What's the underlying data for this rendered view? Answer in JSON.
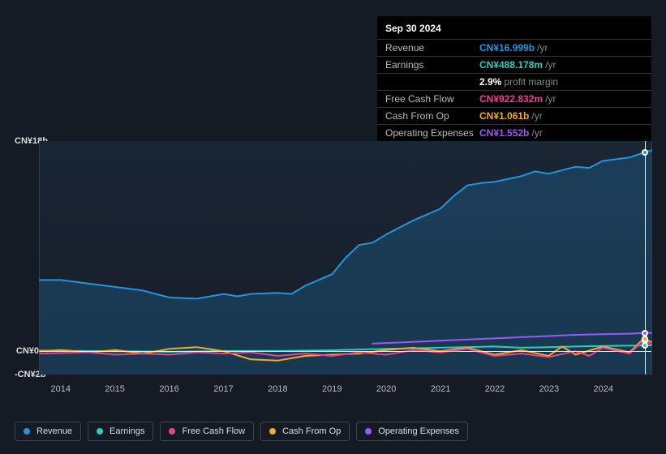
{
  "tooltip": {
    "date": "Sep 30 2024",
    "rows": [
      {
        "key": "revenue",
        "label": "Revenue",
        "value": "CN¥16.999b",
        "suffix": "/yr",
        "color": "#2394df"
      },
      {
        "key": "earnings",
        "label": "Earnings",
        "value": "CN¥488.178m",
        "suffix": "/yr",
        "color": "#34c9bc",
        "extra": "2.9%",
        "extra_suffix": "profit margin"
      },
      {
        "key": "fcf",
        "label": "Free Cash Flow",
        "value": "CN¥922.832m",
        "suffix": "/yr",
        "color": "#e84393"
      },
      {
        "key": "cfo",
        "label": "Cash From Op",
        "value": "CN¥1.061b",
        "suffix": "/yr",
        "color": "#f0aa2c"
      },
      {
        "key": "opex",
        "label": "Operating Expenses",
        "value": "CN¥1.552b",
        "suffix": "/yr",
        "color": "#9b59f5"
      }
    ]
  },
  "chart": {
    "type": "line",
    "background_top": "#1b2635",
    "background_bottom": "#161d28",
    "grid_color": "#333d4a",
    "zero_line_color": "#e8ecf5",
    "cursor_color": "#e8ecf5",
    "x_start": 2013.6,
    "x_end": 2024.9,
    "y_min": -2,
    "y_max": 18,
    "y_ticks": [
      {
        "v": 18,
        "label": "CN¥18b"
      },
      {
        "v": 0,
        "label": "CN¥0"
      },
      {
        "v": -2,
        "label": "-CN¥2b"
      }
    ],
    "x_ticks": [
      2014,
      2015,
      2016,
      2017,
      2018,
      2019,
      2020,
      2021,
      2022,
      2023,
      2024
    ],
    "cursor_x": 2024.75,
    "label_fontsize": 11,
    "stroke_width": 2,
    "series": {
      "revenue": {
        "name": "Revenue",
        "color": "#2394df",
        "fill": "rgba(35,148,223,0.22)",
        "points": [
          [
            2013.6,
            6.1
          ],
          [
            2014.0,
            6.1
          ],
          [
            2014.5,
            5.8
          ],
          [
            2015.0,
            5.5
          ],
          [
            2015.5,
            5.2
          ],
          [
            2016.0,
            4.6
          ],
          [
            2016.5,
            4.5
          ],
          [
            2017.0,
            4.9
          ],
          [
            2017.25,
            4.7
          ],
          [
            2017.5,
            4.9
          ],
          [
            2018.0,
            5.0
          ],
          [
            2018.25,
            4.9
          ],
          [
            2018.5,
            5.6
          ],
          [
            2018.75,
            6.1
          ],
          [
            2019.0,
            6.6
          ],
          [
            2019.25,
            8.0
          ],
          [
            2019.5,
            9.1
          ],
          [
            2019.75,
            9.3
          ],
          [
            2020.0,
            10.0
          ],
          [
            2020.5,
            11.2
          ],
          [
            2021.0,
            12.2
          ],
          [
            2021.25,
            13.3
          ],
          [
            2021.5,
            14.2
          ],
          [
            2021.75,
            14.4
          ],
          [
            2022.0,
            14.5
          ],
          [
            2022.5,
            15.0
          ],
          [
            2022.75,
            15.4
          ],
          [
            2023.0,
            15.2
          ],
          [
            2023.5,
            15.8
          ],
          [
            2023.75,
            15.7
          ],
          [
            2024.0,
            16.3
          ],
          [
            2024.5,
            16.6
          ],
          [
            2024.75,
            17.0
          ],
          [
            2024.9,
            17.2
          ]
        ]
      },
      "earnings": {
        "name": "Earnings",
        "color": "#34c9bc",
        "points": [
          [
            2013.6,
            0.05
          ],
          [
            2015.0,
            0.0
          ],
          [
            2016.0,
            -0.05
          ],
          [
            2017.0,
            0.02
          ],
          [
            2018.0,
            0.02
          ],
          [
            2019.0,
            0.08
          ],
          [
            2020.0,
            0.2
          ],
          [
            2021.0,
            0.3
          ],
          [
            2022.0,
            0.4
          ],
          [
            2022.5,
            0.3
          ],
          [
            2023.0,
            0.35
          ],
          [
            2023.5,
            0.4
          ],
          [
            2024.0,
            0.45
          ],
          [
            2024.75,
            0.49
          ],
          [
            2024.9,
            0.5
          ]
        ]
      },
      "fcf": {
        "name": "Free Cash Flow",
        "color": "#e84393",
        "points": [
          [
            2013.6,
            -0.2
          ],
          [
            2014.5,
            -0.1
          ],
          [
            2015.0,
            -0.3
          ],
          [
            2015.5,
            -0.2
          ],
          [
            2016.0,
            -0.3
          ],
          [
            2016.5,
            -0.1
          ],
          [
            2017.0,
            -0.2
          ],
          [
            2017.5,
            -0.1
          ],
          [
            2018.0,
            -0.4
          ],
          [
            2018.5,
            -0.2
          ],
          [
            2019.0,
            -0.4
          ],
          [
            2019.5,
            -0.1
          ],
          [
            2020.0,
            -0.3
          ],
          [
            2020.5,
            0.1
          ],
          [
            2021.0,
            -0.1
          ],
          [
            2021.5,
            0.2
          ],
          [
            2022.0,
            -0.4
          ],
          [
            2022.5,
            -0.2
          ],
          [
            2023.0,
            -0.5
          ],
          [
            2023.5,
            0.0
          ],
          [
            2023.75,
            -0.4
          ],
          [
            2024.0,
            0.3
          ],
          [
            2024.5,
            -0.2
          ],
          [
            2024.75,
            0.92
          ],
          [
            2024.9,
            0.6
          ]
        ]
      },
      "cfo": {
        "name": "Cash From Op",
        "color": "#f0aa2c",
        "points": [
          [
            2013.6,
            0.0
          ],
          [
            2014.0,
            0.1
          ],
          [
            2014.5,
            -0.1
          ],
          [
            2015.0,
            0.1
          ],
          [
            2015.5,
            -0.2
          ],
          [
            2016.0,
            0.2
          ],
          [
            2016.5,
            0.35
          ],
          [
            2017.0,
            0.0
          ],
          [
            2017.5,
            -0.7
          ],
          [
            2018.0,
            -0.8
          ],
          [
            2018.5,
            -0.4
          ],
          [
            2019.0,
            -0.3
          ],
          [
            2019.5,
            -0.2
          ],
          [
            2020.0,
            0.1
          ],
          [
            2020.5,
            0.3
          ],
          [
            2021.0,
            0.0
          ],
          [
            2021.5,
            0.3
          ],
          [
            2022.0,
            -0.3
          ],
          [
            2022.5,
            0.1
          ],
          [
            2023.0,
            -0.4
          ],
          [
            2023.25,
            0.4
          ],
          [
            2023.5,
            -0.3
          ],
          [
            2024.0,
            0.4
          ],
          [
            2024.5,
            -0.1
          ],
          [
            2024.75,
            1.06
          ],
          [
            2024.9,
            0.8
          ]
        ]
      },
      "opex": {
        "name": "Operating Expenses",
        "color": "#9b59f5",
        "points": [
          [
            2019.75,
            0.65
          ],
          [
            2020.0,
            0.7
          ],
          [
            2020.5,
            0.8
          ],
          [
            2021.0,
            0.9
          ],
          [
            2021.5,
            1.0
          ],
          [
            2022.0,
            1.1
          ],
          [
            2022.5,
            1.2
          ],
          [
            2023.0,
            1.3
          ],
          [
            2023.5,
            1.4
          ],
          [
            2024.0,
            1.45
          ],
          [
            2024.5,
            1.5
          ],
          [
            2024.75,
            1.55
          ],
          [
            2024.9,
            1.57
          ]
        ]
      }
    }
  },
  "legend": [
    {
      "key": "revenue",
      "label": "Revenue",
      "color": "#2394df"
    },
    {
      "key": "earnings",
      "label": "Earnings",
      "color": "#34c9bc"
    },
    {
      "key": "fcf",
      "label": "Free Cash Flow",
      "color": "#e84393"
    },
    {
      "key": "cfo",
      "label": "Cash From Op",
      "color": "#f0aa2c"
    },
    {
      "key": "opex",
      "label": "Operating Expenses",
      "color": "#9b59f5"
    }
  ]
}
